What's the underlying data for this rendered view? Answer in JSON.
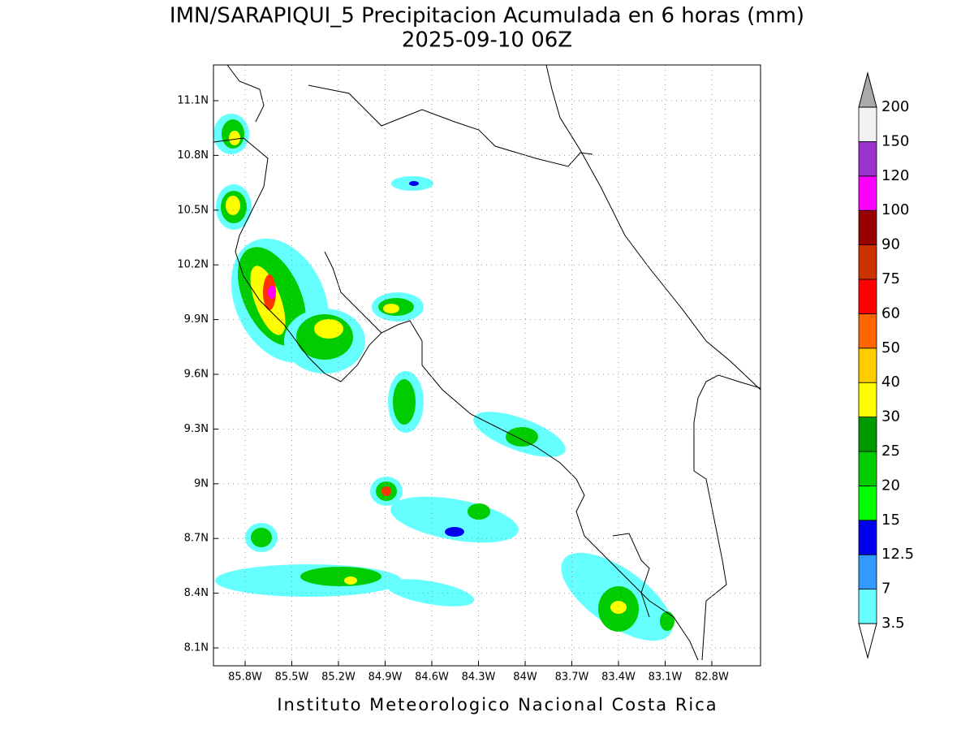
{
  "header": {
    "title": "IMN/SARAPIQUI_5 Precipitacion Acumulada en 6 horas (mm)",
    "subtitle": "2025-09-10 06Z"
  },
  "map": {
    "lat_labels": [
      "11.1N",
      "10.8N",
      "10.5N",
      "10.2N",
      "9.9N",
      "9.6N",
      "9.3N",
      "9N",
      "8.7N",
      "8.4N",
      "8.1N"
    ],
    "lon_labels": [
      "85.8W",
      "85.5W",
      "85.2W",
      "84.9W",
      "84.6W",
      "84.3W",
      "84W",
      "83.7W",
      "83.4W",
      "83.1W",
      "82.8W"
    ],
    "grid": true
  },
  "colorbar": {
    "labels": [
      "3.5",
      "7",
      "12.5",
      "15",
      "20",
      "25",
      "30",
      "40",
      "50",
      "60",
      "75",
      "90",
      "100",
      "120",
      "150",
      "200"
    ],
    "colors": [
      "#66ffff",
      "#3399ff",
      "#0000ee",
      "#00ff00",
      "#00cc00",
      "#009900",
      "#ffff00",
      "#ffcc00",
      "#ff6600",
      "#ff0000",
      "#cc3300",
      "#990000",
      "#ff00ff",
      "#9933cc",
      "#f2f2f2"
    ],
    "under_color": "#ffffff",
    "over_color": "#aaaaaa"
  },
  "footer": "Instituto Meteorologico Nacional Costa Rica"
}
